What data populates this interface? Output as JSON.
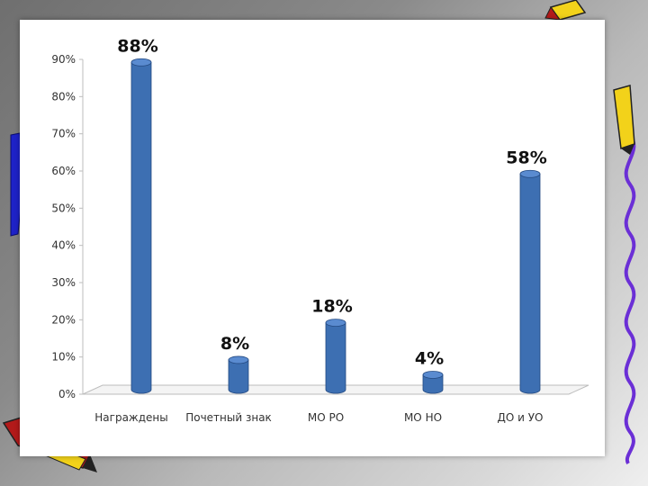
{
  "colors": {
    "bar_fill": "#3d6fb2",
    "bar_top": "#5a8bd0",
    "bar_edge": "#244a82",
    "panel": "#ffffff",
    "decor_blue": "#1e22c8",
    "decor_yellow": "#f2d21a",
    "decor_red": "#b31a1a"
  },
  "chart_data": {
    "type": "bar",
    "title": "",
    "xlabel": "",
    "ylabel": "",
    "ylim": [
      0,
      90
    ],
    "y_unit": "%",
    "y_ticks": [
      "0%",
      "10%",
      "20%",
      "30%",
      "40%",
      "50%",
      "60%",
      "70%",
      "80%",
      "90%"
    ],
    "categories": [
      "Награждены",
      "Почетный знак",
      "МО РО",
      "МО НО",
      "ДО и УО"
    ],
    "values": [
      88,
      8,
      18,
      4,
      58
    ],
    "data_labels": [
      "88%",
      "8%",
      "18%",
      "4%",
      "58%"
    ],
    "grid": false,
    "legend": "none",
    "three_d": true
  }
}
